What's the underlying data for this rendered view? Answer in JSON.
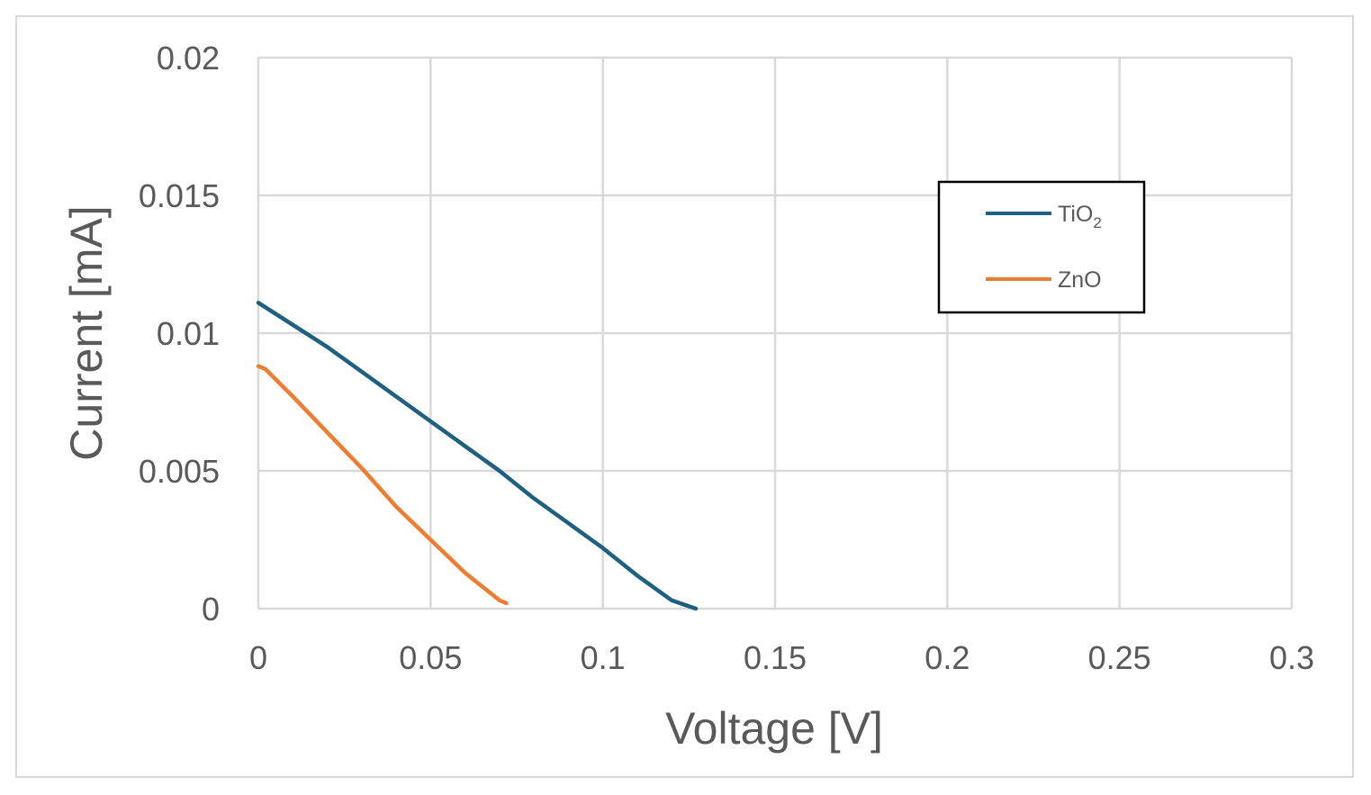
{
  "chart_data": {
    "type": "line",
    "xlabel": "Voltage [V]",
    "ylabel": "Current [mA]",
    "xlim": [
      0,
      0.3
    ],
    "ylim": [
      0,
      0.02
    ],
    "x_ticks": [
      0,
      0.05,
      0.1,
      0.15,
      0.2,
      0.25,
      0.3
    ],
    "x_tick_labels": [
      "0",
      "0.05",
      "0.1",
      "0.15",
      "0.2",
      "0.25",
      "0.3"
    ],
    "y_ticks": [
      0,
      0.005,
      0.01,
      0.015,
      0.02
    ],
    "y_tick_labels": [
      "0",
      "0.005",
      "0.01",
      "0.015",
      "0.02"
    ],
    "grid": true,
    "legend_position": "top-right",
    "series": [
      {
        "name": "TiO2",
        "name_base": "TiO",
        "name_sub": "2",
        "color": "#1f5f80",
        "x": [
          0,
          0.01,
          0.02,
          0.03,
          0.04,
          0.05,
          0.06,
          0.07,
          0.08,
          0.09,
          0.1,
          0.11,
          0.12,
          0.127
        ],
        "y": [
          0.0111,
          0.0103,
          0.0095,
          0.0086,
          0.0077,
          0.0068,
          0.0059,
          0.005,
          0.004,
          0.0031,
          0.0022,
          0.0012,
          0.0003,
          0
        ]
      },
      {
        "name": "ZnO",
        "color": "#ed7d31",
        "x": [
          0,
          0.002,
          0.01,
          0.02,
          0.03,
          0.04,
          0.05,
          0.06,
          0.07,
          0.072
        ],
        "y": [
          0.0088,
          0.0087,
          0.0077,
          0.0064,
          0.0051,
          0.0037,
          0.0025,
          0.0013,
          0.0003,
          0.0002
        ]
      }
    ]
  }
}
